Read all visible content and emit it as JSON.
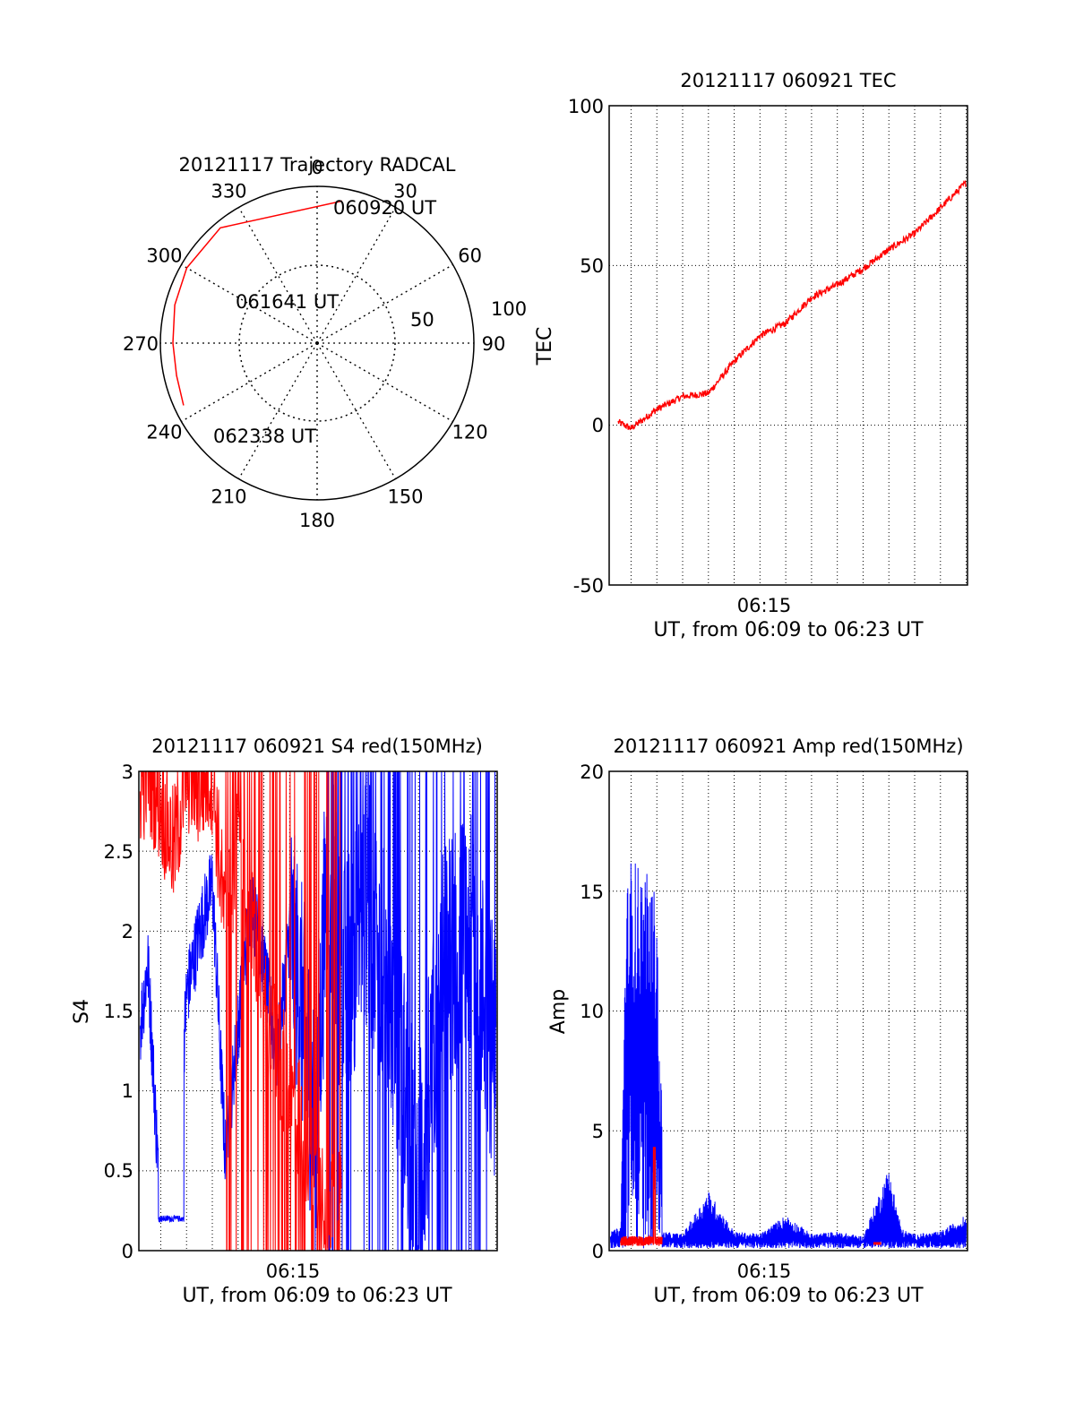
{
  "figure": {
    "colors": {
      "red": "#ff0000",
      "blue": "#0000ff",
      "axis": "#000000",
      "grid": "#000000"
    }
  },
  "chart_data": [
    {
      "id": "trajectory",
      "type": "polar",
      "title": "20121117 Trajectory RADCAL",
      "angular_ticks": [
        "0",
        "30",
        "60",
        "90",
        "120",
        "150",
        "180",
        "210",
        "240",
        "270",
        "300",
        "330"
      ],
      "radial_ticks": [
        "50",
        "100"
      ],
      "annotations": [
        "060920 UT",
        "061641 UT",
        "062338 UT"
      ],
      "series": [
        {
          "color": "#ff0000",
          "points": [
            {
              "azimuth_deg": 10,
              "zenith_deg": 92
            },
            {
              "azimuth_deg": 320,
              "zenith_deg": 96
            },
            {
              "azimuth_deg": 300,
              "zenith_deg": 96
            },
            {
              "azimuth_deg": 285,
              "zenith_deg": 94
            },
            {
              "azimuth_deg": 270,
              "zenith_deg": 92
            },
            {
              "azimuth_deg": 257,
              "zenith_deg": 92
            },
            {
              "azimuth_deg": 245,
              "zenith_deg": 94
            }
          ]
        }
      ]
    },
    {
      "id": "tec",
      "type": "line",
      "title": "20121117 060921 TEC",
      "ylabel": "TEC",
      "xlabel": "UT, from 06:09 to 06:23 UT",
      "x_tick_labels": [
        "06:15"
      ],
      "y_ticks": [
        "100",
        "50",
        "0",
        "-50"
      ],
      "ylim": [
        -50,
        100
      ],
      "xlim_minutes": [
        6.15,
        20.05
      ],
      "grid": true,
      "series": [
        {
          "color": "#ff0000",
          "x": [
            6.5,
            7.0,
            8.0,
            9.0,
            10.0,
            11.0,
            12.0,
            13.0,
            14.0,
            15.0,
            16.0,
            17.0,
            18.0,
            19.0,
            20.0
          ],
          "y": [
            1,
            -1,
            5,
            9,
            10,
            20,
            28,
            32,
            40,
            44,
            49,
            55,
            60,
            68,
            76
          ]
        }
      ]
    },
    {
      "id": "s4",
      "type": "line",
      "title": "20121117 060921 S4 red(150MHz)",
      "ylabel": "S4",
      "xlabel": "UT, from 06:09 to 06:23 UT",
      "x_tick_labels": [
        "06:15"
      ],
      "y_ticks": [
        "3",
        "2.5",
        "2",
        "1.5",
        "1",
        "0.5",
        "0"
      ],
      "ylim": [
        0,
        3
      ],
      "xlim_minutes": [
        6.15,
        20.05
      ],
      "grid": true,
      "series": [
        {
          "color": "#0000ff",
          "x": [
            6.2,
            6.5,
            7.0,
            7.5,
            8.0,
            8.5,
            9.0,
            9.5,
            10.0,
            10.5,
            11.0,
            11.5,
            12.0,
            12.5,
            13.0,
            13.5,
            14.0,
            15.0,
            16.0,
            17.0,
            18.0,
            19.0,
            20.0
          ],
          "y": [
            1.4,
            1.8,
            0.2,
            0.2,
            1.6,
            2.0,
            2.3,
            0.6,
            1.4,
            2.2,
            1.8,
            1.2,
            2.0,
            1.5,
            0.7,
            2.6,
            1.6,
            2.2,
            1.5,
            0.4,
            1.8,
            2.0,
            1.2
          ]
        },
        {
          "color": "#ff0000",
          "x": [
            6.2,
            6.5,
            7.0,
            7.5,
            8.0,
            8.5,
            9.0,
            9.5,
            10.0,
            11.0,
            12.0,
            13.0,
            14.0
          ],
          "y": [
            2.9,
            3.0,
            2.8,
            2.5,
            3.0,
            2.9,
            3.0,
            2.0,
            2.6,
            1.5,
            1.0,
            0.5,
            0.2
          ]
        }
      ]
    },
    {
      "id": "amp",
      "type": "line",
      "title": "20121117 060921 Amp red(150MHz)",
      "ylabel": "Amp",
      "xlabel": "UT, from 06:09 to 06:23 UT",
      "x_tick_labels": [
        "06:15"
      ],
      "y_ticks": [
        "20",
        "15",
        "10",
        "5",
        "0"
      ],
      "ylim": [
        0,
        20
      ],
      "xlim_minutes": [
        6.15,
        20.05
      ],
      "grid": true,
      "series": [
        {
          "color": "#0000ff",
          "x": [
            6.2,
            6.6,
            6.8,
            7.0,
            7.5,
            8.0,
            8.2,
            9.0,
            10.0,
            11.0,
            12.0,
            13.0,
            14.0,
            15.0,
            16.0,
            17.0,
            17.5,
            18.0,
            19.0,
            20.0
          ],
          "y": [
            0.8,
            1.0,
            15.0,
            16.5,
            16.0,
            15.0,
            0.8,
            0.7,
            2.5,
            0.8,
            0.7,
            1.5,
            0.7,
            0.8,
            0.6,
            3.5,
            0.9,
            0.7,
            0.8,
            1.5
          ]
        },
        {
          "color": "#ff0000",
          "x": [
            6.6,
            7.0,
            7.5,
            8.0,
            16.5
          ],
          "y": [
            0.4,
            0.5,
            0.4,
            4.3,
            0.3
          ]
        }
      ]
    }
  ]
}
